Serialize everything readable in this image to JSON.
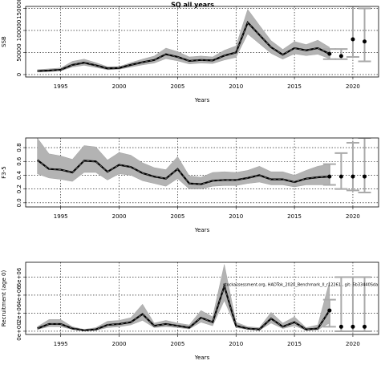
{
  "title": "SQ all years",
  "chart_data": [
    {
      "type": "line-band",
      "y_label": "SSB",
      "x_label": "Years",
      "xlim": [
        1992,
        2022.2
      ],
      "xticks": [
        1995,
        2000,
        2005,
        2010,
        2015,
        2020
      ],
      "ylim": [
        -5500,
        154500
      ],
      "yticks": [
        0,
        50000,
        100000,
        150000
      ],
      "grid": true,
      "x": [
        1993,
        1994,
        1995,
        1996,
        1997,
        1998,
        1999,
        2000,
        2001,
        2002,
        2003,
        2004,
        2005,
        2006,
        2007,
        2008,
        2009,
        2010,
        2011,
        2012,
        2013,
        2014,
        2015,
        2016,
        2017,
        2018
      ],
      "values": [
        8000,
        9000,
        11000,
        22000,
        27000,
        21000,
        14000,
        15000,
        22000,
        28000,
        33000,
        46000,
        40000,
        31000,
        33000,
        32000,
        43000,
        50000,
        118000,
        90000,
        62000,
        45000,
        60000,
        55000,
        60000,
        47000
      ],
      "lower": [
        6000,
        7000,
        8500,
        17000,
        21000,
        16000,
        11000,
        12000,
        17000,
        22000,
        26000,
        36000,
        31000,
        24000,
        26000,
        25000,
        33000,
        39000,
        92000,
        70000,
        48000,
        35000,
        47000,
        43000,
        46000,
        36000
      ],
      "upper": [
        11000,
        13000,
        15000,
        30000,
        35000,
        27000,
        18000,
        18000,
        27000,
        35000,
        42000,
        60000,
        52000,
        40000,
        42000,
        40000,
        55000,
        65000,
        148000,
        112000,
        77000,
        57000,
        75000,
        68000,
        78000,
        62000
      ],
      "forecast": {
        "x": [
          2018,
          2019,
          2020,
          2021
        ],
        "values": [
          47000,
          42000,
          80000,
          75000
        ],
        "lower": [
          35000,
          35000,
          40000,
          30000
        ],
        "upper": [
          58000,
          58000,
          155000,
          150000
        ]
      }
    },
    {
      "type": "line-band",
      "y_label": "F3-5",
      "x_label": "Years",
      "xlim": [
        1992,
        2022.2
      ],
      "xticks": [
        1995,
        2000,
        2005,
        2010,
        2015,
        2020
      ],
      "ylim": [
        -0.06,
        0.94
      ],
      "yticks": [
        {
          "value": 0,
          "label": "0.0"
        },
        0.2,
        0.4,
        0.6,
        0.8
      ],
      "grid": true,
      "x": [
        1993,
        1994,
        1995,
        1996,
        1997,
        1998,
        1999,
        2000,
        2001,
        2002,
        2003,
        2004,
        2005,
        2006,
        2007,
        2008,
        2009,
        2010,
        2011,
        2012,
        2013,
        2014,
        2015,
        2016,
        2017,
        2018
      ],
      "values": [
        0.62,
        0.49,
        0.48,
        0.44,
        0.61,
        0.6,
        0.45,
        0.55,
        0.52,
        0.43,
        0.38,
        0.35,
        0.49,
        0.28,
        0.27,
        0.32,
        0.33,
        0.33,
        0.36,
        0.4,
        0.34,
        0.34,
        0.3,
        0.35,
        0.37,
        0.38
      ],
      "lower": [
        0.42,
        0.36,
        0.34,
        0.31,
        0.44,
        0.44,
        0.33,
        0.42,
        0.4,
        0.32,
        0.28,
        0.24,
        0.35,
        0.2,
        0.2,
        0.24,
        0.25,
        0.25,
        0.28,
        0.3,
        0.26,
        0.26,
        0.23,
        0.26,
        0.26,
        0.26
      ],
      "upper": [
        0.94,
        0.71,
        0.68,
        0.63,
        0.83,
        0.81,
        0.62,
        0.73,
        0.69,
        0.58,
        0.51,
        0.48,
        0.67,
        0.39,
        0.37,
        0.44,
        0.45,
        0.44,
        0.47,
        0.53,
        0.45,
        0.45,
        0.4,
        0.47,
        0.53,
        0.56
      ],
      "forecast": {
        "x": [
          2018,
          2019,
          2020,
          2021
        ],
        "values": [
          0.38,
          0.38,
          0.38,
          0.38
        ],
        "lower": [
          0.26,
          0.2,
          0.18,
          0.15
        ],
        "upper": [
          0.56,
          0.72,
          0.87,
          0.94
        ]
      }
    },
    {
      "type": "line-band",
      "y_label": "Recruitment (age 0)",
      "x_label": "Years",
      "xlim": [
        1992,
        2022.2
      ],
      "xticks": [
        1995,
        2000,
        2005,
        2010,
        2015,
        2020
      ],
      "ylim": [
        -360000,
        7640000
      ],
      "yticks": [
        {
          "value": 0,
          "label": "0e+00"
        },
        {
          "value": 2000000,
          "label": "2e+06"
        },
        {
          "value": 4000000,
          "label": "4e+06"
        },
        {
          "value": 6000000,
          "label": "6e+06"
        }
      ],
      "grid": true,
      "annotation": "stockassessment.org, HADTok_2020_Benchmark_ll_r12261 , git: 5b33440Sda",
      "x": [
        1993,
        1994,
        1995,
        1996,
        1997,
        1998,
        1999,
        2000,
        2001,
        2002,
        2003,
        2004,
        2005,
        2006,
        2007,
        2008,
        2009,
        2010,
        2011,
        2012,
        2013,
        2014,
        2015,
        2016,
        2017,
        2018
      ],
      "values": [
        300000,
        800000,
        800000,
        300000,
        100000,
        200000,
        700000,
        800000,
        1000000,
        1900000,
        600000,
        800000,
        600000,
        400000,
        1500000,
        1000000,
        5000000,
        600000,
        300000,
        200000,
        1400000,
        500000,
        1000000,
        200000,
        300000,
        2300000
      ],
      "lower": [
        200000,
        500000,
        500000,
        200000,
        50000,
        100000,
        400000,
        500000,
        700000,
        1200000,
        400000,
        500000,
        400000,
        250000,
        1000000,
        600000,
        3400000,
        400000,
        200000,
        100000,
        900000,
        300000,
        600000,
        100000,
        150000,
        900000
      ],
      "upper": [
        500000,
        1300000,
        1300000,
        500000,
        200000,
        400000,
        1100000,
        1200000,
        1500000,
        3000000,
        900000,
        1200000,
        900000,
        700000,
        2300000,
        1600000,
        7400000,
        1000000,
        500000,
        400000,
        2100000,
        900000,
        1600000,
        400000,
        700000,
        5500000
      ],
      "forecast": {
        "x": [
          2018,
          2019,
          2020,
          2021
        ],
        "values": [
          2300000,
          500000,
          500000,
          500000
        ],
        "lower": [
          500000,
          0,
          0,
          0
        ],
        "upper": [
          3500000,
          6000000,
          6000000,
          6000000
        ]
      }
    }
  ]
}
